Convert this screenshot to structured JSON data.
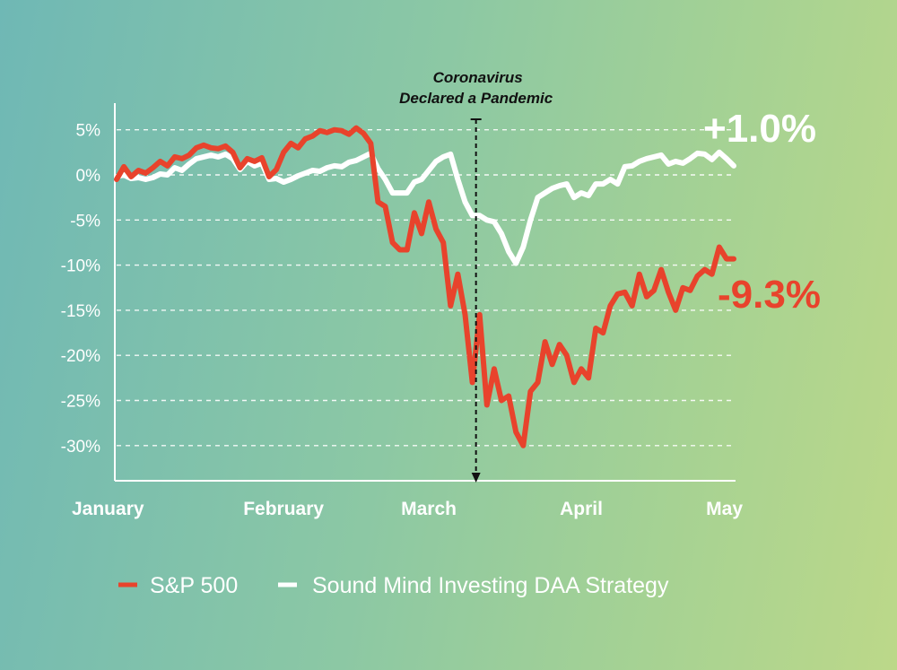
{
  "chart_data": {
    "type": "line",
    "title": "",
    "xlabel": "",
    "ylabel": "",
    "ylim": [
      -34,
      8
    ],
    "ytick_values": [
      5,
      0,
      -5,
      -10,
      -15,
      -20,
      -25,
      -30
    ],
    "ytick_labels": [
      "5%",
      "0%",
      "-5%",
      "-10%",
      "-15%",
      "-20%",
      "-25%",
      "-30%"
    ],
    "x_month_positions": [
      0,
      23,
      43,
      64,
      85
    ],
    "x_month_labels": [
      "January",
      "February",
      "March",
      "April",
      "May"
    ],
    "annotation": {
      "line1": "Coronavirus",
      "line2": "Declared a Pandemic",
      "x": 49.5
    },
    "series": [
      {
        "name": "S&P 500",
        "color": "#e8432c",
        "end_label": "-9.3%",
        "x": [
          0,
          1,
          2,
          3,
          4,
          5,
          6,
          7,
          8,
          9,
          10,
          11,
          12,
          13,
          14,
          15,
          16,
          17,
          18,
          19,
          20,
          21,
          22,
          23,
          24,
          25,
          26,
          27,
          28,
          29,
          30,
          31,
          32,
          33,
          34,
          35,
          36,
          37,
          38,
          39,
          40,
          41,
          42,
          43,
          44,
          45,
          46,
          47,
          48,
          49,
          50,
          51,
          52,
          53,
          54,
          55,
          56,
          57,
          58,
          59,
          60,
          61,
          62,
          63,
          64,
          65,
          66,
          67,
          68,
          69,
          70,
          71,
          72,
          73,
          74,
          75,
          76,
          77,
          78,
          79,
          80,
          81,
          82,
          83,
          84,
          85
        ],
        "values": [
          -0.5,
          0.9,
          -0.2,
          0.5,
          0.2,
          0.8,
          1.5,
          1.0,
          2.0,
          1.8,
          2.2,
          3.0,
          3.3,
          3.0,
          2.9,
          3.2,
          2.5,
          0.8,
          1.8,
          1.5,
          1.9,
          -0.2,
          0.6,
          2.5,
          3.5,
          3.0,
          4.0,
          4.3,
          4.9,
          4.7,
          5.0,
          4.9,
          4.5,
          5.2,
          4.6,
          3.5,
          -3.0,
          -3.5,
          -7.5,
          -8.3,
          -8.3,
          -4.2,
          -6.5,
          -3.0,
          -6.0,
          -7.5,
          -14.5,
          -11.0,
          -15.5,
          -23.0,
          -15.5,
          -25.5,
          -21.5,
          -25.0,
          -24.5,
          -28.5,
          -30.0,
          -24.0,
          -23.0,
          -18.5,
          -21.0,
          -18.8,
          -20.0,
          -23.0,
          -21.5,
          -22.5,
          -17.0,
          -17.5,
          -14.5,
          -13.2,
          -13.0,
          -14.5,
          -11.0,
          -13.5,
          -12.8,
          -10.5,
          -13.0,
          -15.0,
          -12.5,
          -12.8,
          -11.2,
          -10.5,
          -11.0,
          -8.0,
          -9.3,
          -9.3
        ]
      },
      {
        "name": "Sound Mind Investing DAA Strategy",
        "color": "#ffffff",
        "end_label": "+1.0%",
        "x": [
          0,
          1,
          2,
          3,
          4,
          5,
          6,
          7,
          8,
          9,
          10,
          11,
          12,
          13,
          14,
          15,
          16,
          17,
          18,
          19,
          20,
          21,
          22,
          23,
          24,
          25,
          26,
          27,
          28,
          29,
          30,
          31,
          32,
          33,
          34,
          35,
          36,
          37,
          38,
          39,
          40,
          41,
          42,
          43,
          44,
          45,
          46,
          47,
          48,
          49,
          50,
          51,
          52,
          53,
          54,
          55,
          56,
          57,
          58,
          59,
          60,
          61,
          62,
          63,
          64,
          65,
          66,
          67,
          68,
          69,
          70,
          71,
          72,
          73,
          74,
          75,
          76,
          77,
          78,
          79,
          80,
          81,
          82,
          83,
          84,
          85
        ],
        "values": [
          -0.2,
          0.0,
          -0.4,
          -0.3,
          -0.5,
          -0.3,
          0.1,
          0.0,
          0.8,
          0.5,
          1.2,
          1.8,
          2.0,
          2.2,
          2.0,
          2.3,
          1.8,
          0.6,
          1.5,
          1.0,
          1.3,
          -0.5,
          -0.4,
          -0.8,
          -0.5,
          -0.1,
          0.2,
          0.5,
          0.4,
          0.8,
          1.0,
          0.9,
          1.4,
          1.6,
          2.0,
          2.4,
          0.7,
          -0.5,
          -2.0,
          -2.0,
          -2.0,
          -0.8,
          -0.5,
          0.5,
          1.5,
          2.0,
          2.3,
          -0.5,
          -3.0,
          -4.5,
          -4.5,
          -5.0,
          -5.2,
          -6.5,
          -8.5,
          -9.8,
          -8.0,
          -5.0,
          -2.5,
          -2.0,
          -1.5,
          -1.2,
          -1.0,
          -2.5,
          -2.0,
          -2.3,
          -1.0,
          -1.0,
          -0.5,
          -1.0,
          0.9,
          1.0,
          1.5,
          1.8,
          2.0,
          2.2,
          1.2,
          1.5,
          1.3,
          1.8,
          2.4,
          2.3,
          1.7,
          2.5,
          1.8,
          1.0
        ]
      }
    ],
    "legend_position": "bottom-center"
  }
}
